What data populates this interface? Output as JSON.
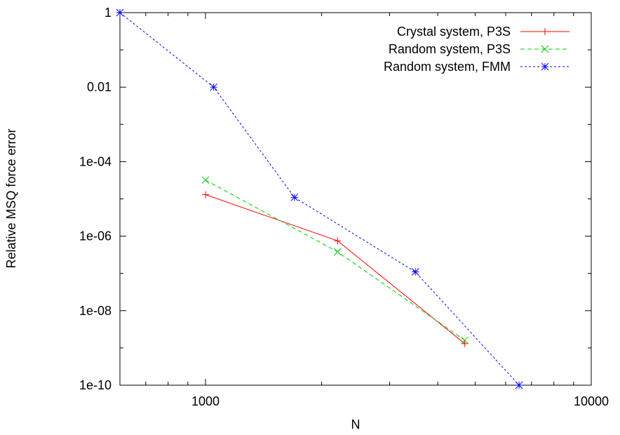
{
  "chart_data": {
    "type": "line",
    "title": "",
    "xlabel": "N",
    "ylabel": "Relative MSQ force error",
    "xscale": "log",
    "yscale": "log",
    "xlim": [
      600,
      10000
    ],
    "ylim": [
      1e-10,
      1
    ],
    "grid": false,
    "legend_position": "top-right",
    "xticks": [
      {
        "value": 1000,
        "label": "1000"
      },
      {
        "value": 10000,
        "label": "10000"
      }
    ],
    "yticks": [
      {
        "value": 1,
        "label": "1"
      },
      {
        "value": 0.01,
        "label": "0.01"
      },
      {
        "value": 0.0001,
        "label": "1e-04"
      },
      {
        "value": 1e-06,
        "label": "1e-06"
      },
      {
        "value": 1e-08,
        "label": "1e-08"
      },
      {
        "value": 1e-10,
        "label": "1e-10"
      }
    ],
    "series": [
      {
        "name": "Crystal system, P3S",
        "color": "#ff0000",
        "dash": "solid",
        "marker": "plus",
        "points": [
          [
            1000,
            1.3e-05
          ],
          [
            2200,
            7.5e-07
          ],
          [
            4700,
            1.3e-09
          ]
        ]
      },
      {
        "name": "Random system, P3S",
        "color": "#00cc00",
        "dash": "dashed",
        "marker": "cross",
        "points": [
          [
            1000,
            3.2e-05
          ],
          [
            2200,
            3.8e-07
          ],
          [
            4700,
            1.6e-09
          ]
        ]
      },
      {
        "name": "Random system, FMM",
        "color": "#0000ff",
        "dash": "dotted",
        "marker": "star",
        "points": [
          [
            600,
            1.0
          ],
          [
            1050,
            0.01
          ],
          [
            1700,
            1.1e-05
          ],
          [
            3500,
            1.1e-07
          ],
          [
            6500,
            1e-10
          ]
        ]
      }
    ]
  }
}
